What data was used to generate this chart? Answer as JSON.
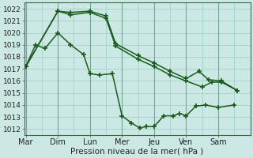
{
  "xlabel": "Pression niveau de la mer( hPa )",
  "bg_color": "#cce8e4",
  "grid_color": "#a8d4d0",
  "line_color": "#1a5c1a",
  "ylim": [
    1011.5,
    1022.5
  ],
  "yticks": [
    1012,
    1013,
    1014,
    1015,
    1016,
    1017,
    1018,
    1019,
    1020,
    1021,
    1022
  ],
  "day_labels": [
    "Mar",
    "Dim",
    "Lun",
    "Mer",
    "Jeu",
    "Ven",
    "Sam"
  ],
  "day_positions": [
    0,
    1,
    2,
    3,
    4,
    5,
    6
  ],
  "xlim": [
    -0.05,
    7.0
  ],
  "series1": {
    "x": [
      0.0,
      0.3,
      0.6,
      1.0,
      1.4,
      1.8,
      2.0,
      2.3,
      2.7,
      3.0,
      3.3,
      3.55,
      3.75,
      4.0,
      4.3,
      4.6,
      4.8,
      5.0,
      5.3,
      5.6,
      6.0,
      6.5
    ],
    "y": [
      1017.2,
      1019.0,
      1018.7,
      1020.0,
      1019.0,
      1018.2,
      1016.6,
      1016.5,
      1016.6,
      1013.1,
      1012.5,
      1012.1,
      1012.2,
      1012.2,
      1013.1,
      1013.1,
      1013.3,
      1013.1,
      1013.9,
      1014.0,
      1013.8,
      1014.0
    ]
  },
  "series2": {
    "x": [
      0.0,
      1.0,
      1.4,
      2.0,
      2.5,
      2.8,
      3.5,
      4.0,
      4.5,
      5.0,
      5.5,
      5.8,
      6.1,
      6.6
    ],
    "y": [
      1017.2,
      1021.8,
      1021.5,
      1021.7,
      1021.2,
      1018.9,
      1017.8,
      1017.2,
      1016.5,
      1016.0,
      1015.5,
      1015.9,
      1015.9,
      1015.2
    ]
  },
  "series3": {
    "x": [
      0.0,
      1.0,
      1.4,
      2.0,
      2.5,
      2.8,
      3.5,
      4.0,
      4.5,
      5.0,
      5.4,
      5.7,
      6.1,
      6.6
    ],
    "y": [
      1017.2,
      1021.8,
      1021.7,
      1021.8,
      1021.4,
      1019.1,
      1018.1,
      1017.5,
      1016.8,
      1016.2,
      1016.8,
      1016.1,
      1016.0,
      1015.2
    ]
  }
}
